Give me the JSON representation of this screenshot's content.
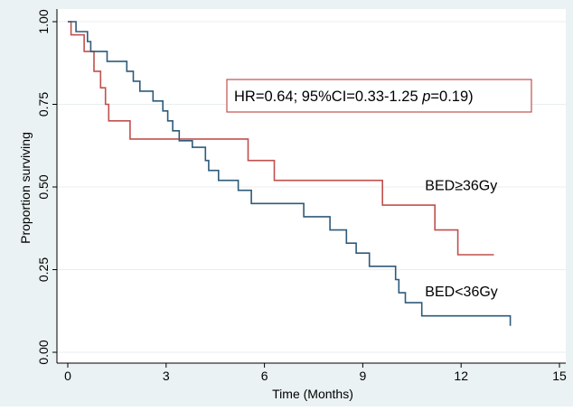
{
  "chart_data": {
    "type": "line",
    "step": true,
    "xlabel": "Time (Months)",
    "ylabel": "Proportion surviving",
    "xlim": [
      0,
      15
    ],
    "ylim": [
      0,
      1
    ],
    "x_ticks": [
      0,
      3,
      6,
      9,
      12,
      15
    ],
    "y_ticks": [
      0.0,
      0.25,
      0.5,
      0.75,
      1.0
    ],
    "x_tick_labels": [
      "0",
      "3",
      "6",
      "9",
      "12",
      "15"
    ],
    "y_tick_labels": [
      "0.00",
      "0.25",
      "0.50",
      "0.75",
      "1.00"
    ],
    "grid": "horizontal",
    "annotation": {
      "prefix": "HR=0.64;  95%CI=0.33-1.25 ",
      "p_symbol": "p",
      "suffix": "=0.19)"
    },
    "series": [
      {
        "name": "BED≥36Gy",
        "color": "#c0504d",
        "points": [
          [
            0,
            1.0
          ],
          [
            0.1,
            1.0
          ],
          [
            0.1,
            0.96
          ],
          [
            0.5,
            0.96
          ],
          [
            0.5,
            0.91
          ],
          [
            0.8,
            0.91
          ],
          [
            0.8,
            0.85
          ],
          [
            1.0,
            0.85
          ],
          [
            1.0,
            0.8
          ],
          [
            1.15,
            0.8
          ],
          [
            1.15,
            0.75
          ],
          [
            1.25,
            0.75
          ],
          [
            1.25,
            0.7
          ],
          [
            1.9,
            0.7
          ],
          [
            1.9,
            0.645
          ],
          [
            5.5,
            0.645
          ],
          [
            5.5,
            0.58
          ],
          [
            6.3,
            0.58
          ],
          [
            6.3,
            0.52
          ],
          [
            9.6,
            0.52
          ],
          [
            9.6,
            0.445
          ],
          [
            11.2,
            0.445
          ],
          [
            11.2,
            0.37
          ],
          [
            11.9,
            0.37
          ],
          [
            11.9,
            0.295
          ],
          [
            13.0,
            0.295
          ]
        ]
      },
      {
        "name": "BED<36Gy",
        "color": "#2e5a7a",
        "points": [
          [
            0,
            1.0
          ],
          [
            0.25,
            1.0
          ],
          [
            0.25,
            0.97
          ],
          [
            0.6,
            0.97
          ],
          [
            0.6,
            0.94
          ],
          [
            0.7,
            0.94
          ],
          [
            0.7,
            0.91
          ],
          [
            1.2,
            0.91
          ],
          [
            1.2,
            0.88
          ],
          [
            1.8,
            0.88
          ],
          [
            1.8,
            0.85
          ],
          [
            2.0,
            0.85
          ],
          [
            2.0,
            0.82
          ],
          [
            2.2,
            0.82
          ],
          [
            2.2,
            0.79
          ],
          [
            2.6,
            0.79
          ],
          [
            2.6,
            0.76
          ],
          [
            2.9,
            0.76
          ],
          [
            2.9,
            0.73
          ],
          [
            3.05,
            0.73
          ],
          [
            3.05,
            0.7
          ],
          [
            3.2,
            0.7
          ],
          [
            3.2,
            0.67
          ],
          [
            3.4,
            0.67
          ],
          [
            3.4,
            0.64
          ],
          [
            3.8,
            0.64
          ],
          [
            3.8,
            0.62
          ],
          [
            4.2,
            0.62
          ],
          [
            4.2,
            0.58
          ],
          [
            4.3,
            0.58
          ],
          [
            4.3,
            0.55
          ],
          [
            4.6,
            0.55
          ],
          [
            4.6,
            0.52
          ],
          [
            5.2,
            0.52
          ],
          [
            5.2,
            0.49
          ],
          [
            5.6,
            0.49
          ],
          [
            5.6,
            0.45
          ],
          [
            7.2,
            0.45
          ],
          [
            7.2,
            0.41
          ],
          [
            8.0,
            0.41
          ],
          [
            8.0,
            0.37
          ],
          [
            8.5,
            0.37
          ],
          [
            8.5,
            0.33
          ],
          [
            8.8,
            0.33
          ],
          [
            8.8,
            0.3
          ],
          [
            9.2,
            0.3
          ],
          [
            9.2,
            0.26
          ],
          [
            10.0,
            0.26
          ],
          [
            10.0,
            0.22
          ],
          [
            10.1,
            0.22
          ],
          [
            10.1,
            0.18
          ],
          [
            10.3,
            0.18
          ],
          [
            10.3,
            0.15
          ],
          [
            10.8,
            0.15
          ],
          [
            10.8,
            0.11
          ],
          [
            13.5,
            0.11
          ],
          [
            13.5,
            0.08
          ]
        ]
      }
    ],
    "series_labels": [
      {
        "text": "BED≥36Gy",
        "at": [
          10.9,
          0.49
        ]
      },
      {
        "text": "BED<36Gy",
        "at": [
          10.9,
          0.17
        ]
      }
    ]
  }
}
